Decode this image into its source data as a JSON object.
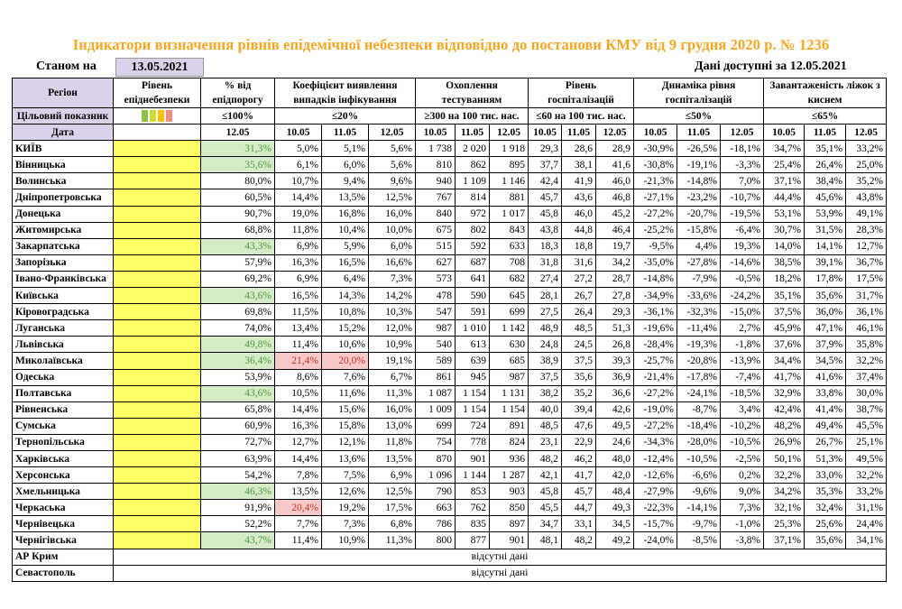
{
  "title": "Індикатори визначення рівнів епідемічної небезпеки відповідно до постанови КМУ від 9 грудня 2020 р. № 1236",
  "as_of_label": "Станом на",
  "as_of_date": "13.05.2021",
  "data_available": "Дані доступні за 12.05.2021",
  "headers": {
    "region": "Регіон",
    "level": "Рівень епіднебезпеки",
    "occupancy_pct": "% від епідпорогу",
    "detection_rate": "Коефіцієнт виявлення випадків інфікування",
    "testing": "Охоплення тестуванням",
    "hospitalization": "Рівень госпіталізацій",
    "hosp_dynamics": "Динаміка рівня госпіталізацій",
    "oxygen_beds": "Завантаженість ліжок з киснем"
  },
  "target_label": "Цільовий показник",
  "targets": {
    "occupancy_pct": "≤100%",
    "detection_rate": "≤20%",
    "testing": "≥300 на 100 тис. нас.",
    "hospitalization": "≤60 на 100 тис. нас.",
    "hosp_dynamics": "≤50%",
    "oxygen_beds": "≤65%"
  },
  "traffic_colors": [
    "#8bc34a",
    "#cddc39",
    "#ffc107",
    "#f28b82"
  ],
  "date_label": "Дата",
  "dates": {
    "occupancy": "12.05",
    "three": [
      "10.05",
      "11.05",
      "12.05"
    ]
  },
  "rows": [
    {
      "name": "КИЇВ",
      "pct": "31,3%",
      "pct_hl": "green",
      "det": [
        "5,0%",
        "5,1%",
        "5,6%"
      ],
      "test": [
        "1 738",
        "2 020",
        "1 918"
      ],
      "hosp": [
        "29,3",
        "28,6",
        "28,9"
      ],
      "dyn": [
        "-30,9%",
        "-26,5%",
        "-18,1%"
      ],
      "oxy": [
        "34,7%",
        "35,1%",
        "33,2%"
      ]
    },
    {
      "name": "Вінницька",
      "pct": "35,6%",
      "pct_hl": "green",
      "det": [
        "6,1%",
        "6,0%",
        "5,6%"
      ],
      "test": [
        "810",
        "862",
        "895"
      ],
      "hosp": [
        "37,7",
        "38,1",
        "41,6"
      ],
      "dyn": [
        "-30,8%",
        "-19,1%",
        "-3,3%"
      ],
      "oxy": [
        "25,4%",
        "26,4%",
        "25,0%"
      ]
    },
    {
      "name": "Волинська",
      "pct": "80,0%",
      "pct_hl": "",
      "det": [
        "10,7%",
        "9,4%",
        "9,6%"
      ],
      "test": [
        "940",
        "1 109",
        "1 146"
      ],
      "hosp": [
        "42,4",
        "41,9",
        "46,0"
      ],
      "dyn": [
        "-21,3%",
        "-14,8%",
        "7,0%"
      ],
      "oxy": [
        "37,1%",
        "38,4%",
        "35,2%"
      ]
    },
    {
      "name": "Дніпропетровська",
      "pct": "60,5%",
      "pct_hl": "",
      "det": [
        "14,4%",
        "13,5%",
        "12,5%"
      ],
      "test": [
        "767",
        "814",
        "881"
      ],
      "hosp": [
        "45,7",
        "43,6",
        "46,8"
      ],
      "dyn": [
        "-27,1%",
        "-23,2%",
        "-10,7%"
      ],
      "oxy": [
        "44,4%",
        "45,6%",
        "43,8%"
      ]
    },
    {
      "name": "Донецька",
      "pct": "90,7%",
      "pct_hl": "",
      "det": [
        "19,0%",
        "16,8%",
        "16,0%"
      ],
      "test": [
        "840",
        "972",
        "1 017"
      ],
      "hosp": [
        "45,8",
        "46,0",
        "45,2"
      ],
      "dyn": [
        "-27,2%",
        "-20,7%",
        "-19,5%"
      ],
      "oxy": [
        "53,1%",
        "53,9%",
        "49,1%"
      ]
    },
    {
      "name": "Житомирська",
      "pct": "68,8%",
      "pct_hl": "",
      "det": [
        "11,8%",
        "10,4%",
        "10,0%"
      ],
      "test": [
        "675",
        "802",
        "843"
      ],
      "hosp": [
        "43,8",
        "44,8",
        "46,4"
      ],
      "dyn": [
        "-25,2%",
        "-15,8%",
        "-6,4%"
      ],
      "oxy": [
        "30,7%",
        "31,5%",
        "28,3%"
      ]
    },
    {
      "name": "Закарпатська",
      "pct": "43,3%",
      "pct_hl": "green",
      "det": [
        "6,9%",
        "5,9%",
        "6,0%"
      ],
      "test": [
        "515",
        "592",
        "633"
      ],
      "hosp": [
        "18,3",
        "18,8",
        "19,7"
      ],
      "dyn": [
        "-9,5%",
        "4,4%",
        "19,3%"
      ],
      "oxy": [
        "14,0%",
        "14,1%",
        "12,7%"
      ]
    },
    {
      "name": "Запорізька",
      "pct": "57,9%",
      "pct_hl": "",
      "det": [
        "16,3%",
        "16,5%",
        "16,6%"
      ],
      "test": [
        "627",
        "687",
        "708"
      ],
      "hosp": [
        "31,8",
        "31,6",
        "34,2"
      ],
      "dyn": [
        "-35,0%",
        "-27,8%",
        "-14,6%"
      ],
      "oxy": [
        "38,5%",
        "39,1%",
        "36,7%"
      ]
    },
    {
      "name": "Івано-Франківська",
      "pct": "69,2%",
      "pct_hl": "",
      "det": [
        "6,9%",
        "6,4%",
        "7,3%"
      ],
      "test": [
        "573",
        "641",
        "682"
      ],
      "hosp": [
        "27,4",
        "27,2",
        "28,7"
      ],
      "dyn": [
        "-14,8%",
        "-7,9%",
        "-0,5%"
      ],
      "oxy": [
        "18,2%",
        "17,8%",
        "17,5%"
      ]
    },
    {
      "name": "Київська",
      "pct": "43,6%",
      "pct_hl": "green",
      "det": [
        "16,5%",
        "14,3%",
        "14,2%"
      ],
      "test": [
        "478",
        "590",
        "645"
      ],
      "hosp": [
        "28,1",
        "26,7",
        "27,8"
      ],
      "dyn": [
        "-34,9%",
        "-33,6%",
        "-24,2%"
      ],
      "oxy": [
        "35,1%",
        "35,6%",
        "31,7%"
      ]
    },
    {
      "name": "Кіровоградська",
      "pct": "69,8%",
      "pct_hl": "",
      "det": [
        "11,5%",
        "10,8%",
        "10,3%"
      ],
      "test": [
        "547",
        "591",
        "699"
      ],
      "hosp": [
        "27,5",
        "26,4",
        "29,3"
      ],
      "dyn": [
        "-36,1%",
        "-32,3%",
        "-15,0%"
      ],
      "oxy": [
        "37,5%",
        "36,0%",
        "36,1%"
      ]
    },
    {
      "name": "Луганська",
      "pct": "74,0%",
      "pct_hl": "",
      "det": [
        "13,4%",
        "15,2%",
        "12,0%"
      ],
      "test": [
        "987",
        "1 010",
        "1 142"
      ],
      "hosp": [
        "48,9",
        "48,5",
        "51,3"
      ],
      "dyn": [
        "-19,6%",
        "-11,4%",
        "2,7%"
      ],
      "oxy": [
        "45,9%",
        "47,1%",
        "46,1%"
      ]
    },
    {
      "name": "Львівська",
      "pct": "49,8%",
      "pct_hl": "green",
      "det": [
        "11,4%",
        "10,6%",
        "10,9%"
      ],
      "test": [
        "540",
        "613",
        "630"
      ],
      "hosp": [
        "24,8",
        "24,5",
        "26,8"
      ],
      "dyn": [
        "-28,4%",
        "-19,3%",
        "-1,8%"
      ],
      "oxy": [
        "37,6%",
        "37,9%",
        "35,8%"
      ]
    },
    {
      "name": "Миколаївська",
      "pct": "36,4%",
      "pct_hl": "green",
      "det": [
        "21,4%",
        "20,0%",
        "19,1%"
      ],
      "det_hl": [
        "red",
        "red",
        ""
      ],
      "test": [
        "589",
        "639",
        "685"
      ],
      "hosp": [
        "38,9",
        "37,5",
        "39,3"
      ],
      "dyn": [
        "-25,7%",
        "-20,8%",
        "-13,9%"
      ],
      "oxy": [
        "34,4%",
        "34,5%",
        "32,2%"
      ]
    },
    {
      "name": "Одеська",
      "pct": "53,9%",
      "pct_hl": "",
      "det": [
        "8,6%",
        "7,6%",
        "6,7%"
      ],
      "test": [
        "861",
        "945",
        "987"
      ],
      "hosp": [
        "37,5",
        "35,6",
        "36,9"
      ],
      "dyn": [
        "-21,4%",
        "-17,8%",
        "-7,4%"
      ],
      "oxy": [
        "41,7%",
        "41,6%",
        "37,4%"
      ]
    },
    {
      "name": "Полтавська",
      "pct": "43,6%",
      "pct_hl": "green",
      "det": [
        "10,5%",
        "11,6%",
        "11,3%"
      ],
      "test": [
        "1 087",
        "1 154",
        "1 131"
      ],
      "hosp": [
        "38,2",
        "35,2",
        "36,6"
      ],
      "dyn": [
        "-27,2%",
        "-24,1%",
        "-18,5%"
      ],
      "oxy": [
        "32,9%",
        "33,8%",
        "30,0%"
      ]
    },
    {
      "name": "Рівненська",
      "pct": "65,8%",
      "pct_hl": "",
      "det": [
        "14,4%",
        "15,6%",
        "16,0%"
      ],
      "test": [
        "1 009",
        "1 154",
        "1 154"
      ],
      "hosp": [
        "40,0",
        "39,4",
        "42,6"
      ],
      "dyn": [
        "-19,0%",
        "-8,7%",
        "3,4%"
      ],
      "oxy": [
        "42,4%",
        "41,4%",
        "38,7%"
      ]
    },
    {
      "name": "Сумська",
      "pct": "60,9%",
      "pct_hl": "",
      "det": [
        "16,3%",
        "15,8%",
        "13,0%"
      ],
      "test": [
        "699",
        "724",
        "891"
      ],
      "hosp": [
        "48,5",
        "47,6",
        "49,5"
      ],
      "dyn": [
        "-27,2%",
        "-18,4%",
        "-10,2%"
      ],
      "oxy": [
        "48,2%",
        "49,4%",
        "45,5%"
      ]
    },
    {
      "name": "Тернопільська",
      "pct": "72,7%",
      "pct_hl": "",
      "det": [
        "12,7%",
        "12,1%",
        "11,8%"
      ],
      "test": [
        "754",
        "778",
        "824"
      ],
      "hosp": [
        "23,1",
        "22,9",
        "24,6"
      ],
      "dyn": [
        "-34,3%",
        "-28,0%",
        "-10,5%"
      ],
      "oxy": [
        "26,9%",
        "26,7%",
        "25,1%"
      ]
    },
    {
      "name": "Харківська",
      "pct": "63,9%",
      "pct_hl": "",
      "det": [
        "14,4%",
        "13,6%",
        "13,5%"
      ],
      "test": [
        "870",
        "901",
        "936"
      ],
      "hosp": [
        "48,2",
        "46,2",
        "48,0"
      ],
      "dyn": [
        "-12,4%",
        "-10,5%",
        "-2,5%"
      ],
      "oxy": [
        "50,1%",
        "51,3%",
        "49,5%"
      ]
    },
    {
      "name": "Херсонська",
      "pct": "54,2%",
      "pct_hl": "",
      "det": [
        "7,8%",
        "7,5%",
        "6,9%"
      ],
      "test": [
        "1 096",
        "1 144",
        "1 287"
      ],
      "hosp": [
        "42,1",
        "41,7",
        "42,0"
      ],
      "dyn": [
        "-12,6%",
        "-6,6%",
        "0,2%"
      ],
      "oxy": [
        "32,2%",
        "33,0%",
        "32,2%"
      ]
    },
    {
      "name": "Хмельницька",
      "pct": "46,3%",
      "pct_hl": "green",
      "det": [
        "13,5%",
        "12,6%",
        "12,5%"
      ],
      "test": [
        "790",
        "853",
        "903"
      ],
      "hosp": [
        "45,8",
        "45,7",
        "48,4"
      ],
      "dyn": [
        "-27,9%",
        "-9,6%",
        "9,0%"
      ],
      "oxy": [
        "34,2%",
        "35,3%",
        "33,2%"
      ]
    },
    {
      "name": "Черкаська",
      "pct": "91,9%",
      "pct_hl": "",
      "det": [
        "20,4%",
        "19,2%",
        "17,5%"
      ],
      "det_hl": [
        "red",
        "",
        ""
      ],
      "test": [
        "663",
        "762",
        "850"
      ],
      "hosp": [
        "45,5",
        "44,7",
        "49,3"
      ],
      "dyn": [
        "-22,3%",
        "-14,1%",
        "7,3%"
      ],
      "oxy": [
        "32,1%",
        "32,4%",
        "31,1%"
      ]
    },
    {
      "name": "Чернівецька",
      "pct": "52,2%",
      "pct_hl": "",
      "det": [
        "7,7%",
        "7,3%",
        "6,8%"
      ],
      "test": [
        "786",
        "835",
        "897"
      ],
      "hosp": [
        "34,7",
        "33,1",
        "34,5"
      ],
      "dyn": [
        "-15,7%",
        "-9,7%",
        "-1,0%"
      ],
      "oxy": [
        "25,3%",
        "25,6%",
        "24,4%"
      ]
    },
    {
      "name": "Чернігівська",
      "pct": "43,7%",
      "pct_hl": "green",
      "det": [
        "11,4%",
        "10,9%",
        "11,3%"
      ],
      "test": [
        "800",
        "877",
        "901"
      ],
      "hosp": [
        "48,1",
        "48,2",
        "49,2"
      ],
      "dyn": [
        "-24,0%",
        "-8,5%",
        "-3,8%"
      ],
      "oxy": [
        "37,1%",
        "35,6%",
        "34,1%"
      ]
    }
  ],
  "no_data_rows": [
    {
      "name": "АР Крим",
      "text": "відсутні дані"
    },
    {
      "name": "Севастополь",
      "text": "відсутні дані"
    }
  ]
}
